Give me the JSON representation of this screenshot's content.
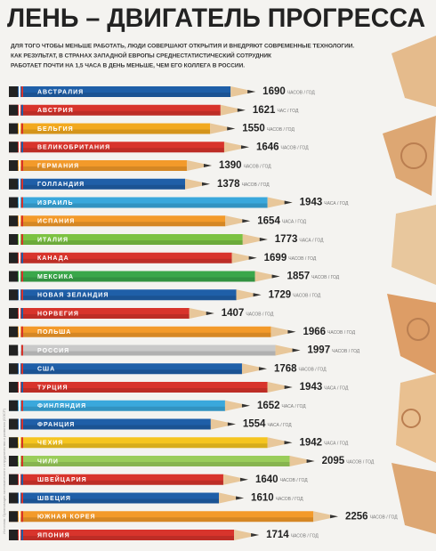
{
  "chart_data": {
    "type": "bar",
    "title": "ЛЕНЬ – ДВИГАТЕЛЬ ПРОГРЕССА",
    "subtitle": [
      "ДЛЯ ТОГО ЧТОБЫ МЕНЬШЕ РАБОТАТЬ, ЛЮДИ СОВЕРШАЮТ ОТКРЫТИЯ И ВНЕДРЯЮТ СОВРЕМЕННЫЕ ТЕХНОЛОГИИ.",
      "КАК РЕЗУЛЬТАТ, В СТРАНАХ ЗАПАДНОЙ ЕВРОПЫ СРЕДНЕСТАТИСТИЧЕСКИЙ СОТРУДНИК",
      "РАБОТАЕТ ПОЧТИ НА 1,5 ЧАСА В ДЕНЬ МЕНЬШЕ, ЧЕМ ЕГО КОЛЛЕГА В РОССИИ."
    ],
    "source": "Источник: Организация экономического сотрудничества и развития (ОЭСР)",
    "categories": [
      "АВСТРАЛИЯ",
      "АВСТРИЯ",
      "БЕЛЬГИЯ",
      "ВЕЛИКОБРИТАНИЯ",
      "ГЕРМАНИЯ",
      "ГОЛЛАНДИЯ",
      "ИЗРАИЛЬ",
      "ИСПАНИЯ",
      "ИТАЛИЯ",
      "КАНАДА",
      "МЕКСИКА",
      "НОВАЯ ЗЕЛАНДИЯ",
      "НОРВЕГИЯ",
      "ПОЛЬША",
      "РОССИЯ",
      "США",
      "ТУРЦИЯ",
      "ФИНЛЯНДИЯ",
      "ФРАНЦИЯ",
      "ЧЕХИЯ",
      "ЧИЛИ",
      "ШВЕЙЦАРИЯ",
      "ШВЕЦИЯ",
      "ЮЖНАЯ КОРЕЯ",
      "ЯПОНИЯ"
    ],
    "values": [
      1690,
      1621,
      1550,
      1646,
      1390,
      1378,
      1943,
      1654,
      1773,
      1699,
      1857,
      1729,
      1407,
      1966,
      1997,
      1768,
      1943,
      1652,
      1554,
      1942,
      2095,
      1640,
      1610,
      2256,
      1714
    ],
    "units": [
      "ЧАСОВ / ГОД",
      "ЧАС / ГОД",
      "ЧАСОВ / ГОД",
      "ЧАСОВ / ГОД",
      "ЧАСОВ / ГОД",
      "ЧАСОВ / ГОД",
      "ЧАСА / ГОД",
      "ЧАСА / ГОД",
      "ЧАСА / ГОД",
      "ЧАСОВ / ГОД",
      "ЧАСОВ / ГОД",
      "ЧАСОВ / ГОД",
      "ЧАСОВ / ГОД",
      "ЧАСОВ / ГОД",
      "ЧАСОВ / ГОД",
      "ЧАСОВ / ГОД",
      "ЧАСА / ГОД",
      "ЧАСА / ГОД",
      "ЧАСА / ГОД",
      "ЧАСА / ГОД",
      "ЧАСОВ / ГОД",
      "ЧАСОВ / ГОД",
      "ЧАСОВ / ГОД",
      "ЧАСОВ / ГОД",
      "ЧАСОВ / ГОД"
    ],
    "colors": [
      "#1f5fa8",
      "#d8342c",
      "#f2a91f",
      "#d8342c",
      "#f39a2a",
      "#1f5fa8",
      "#3aa8dc",
      "#f39a2a",
      "#7cc242",
      "#d8342c",
      "#3aa74a",
      "#1f5fa8",
      "#d8342c",
      "#f39a2a",
      "#c9c9c9",
      "#1f5fa8",
      "#d8342c",
      "#3aa8dc",
      "#1f5fa8",
      "#f5c51f",
      "#9acd5a",
      "#d8342c",
      "#1f5fa8",
      "#f39a2a",
      "#d8342c"
    ]
  }
}
